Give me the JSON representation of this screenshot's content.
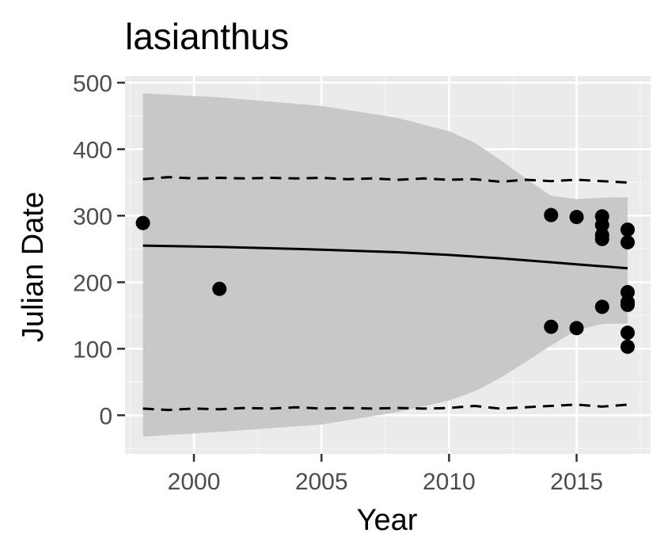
{
  "chart_data": {
    "type": "scatter",
    "title": "lasianthus",
    "xlabel": "Year",
    "ylabel": "Julian Date",
    "xlim": [
      1997.3,
      2017.9
    ],
    "ylim": [
      -58,
      510
    ],
    "x_ticks": [
      2000,
      2005,
      2010,
      2015
    ],
    "y_ticks": [
      0,
      100,
      200,
      300,
      400,
      500
    ],
    "x_tick_labels": [
      "2000",
      "2005",
      "2010",
      "2015"
    ],
    "y_tick_labels": [
      "0",
      "100",
      "200",
      "300",
      "400",
      "500"
    ],
    "grid": true,
    "legend": "none",
    "colors": {
      "panel_background": "#ebebeb",
      "grid_major": "#ffffff",
      "grid_minor": "#f5f5f5",
      "ribbon": "#c8c8c8",
      "line": "#000000",
      "points": "#000000"
    },
    "points": [
      {
        "x": 1998,
        "y": 289
      },
      {
        "x": 2001,
        "y": 190
      },
      {
        "x": 2014,
        "y": 301
      },
      {
        "x": 2014,
        "y": 133
      },
      {
        "x": 2015,
        "y": 298
      },
      {
        "x": 2015,
        "y": 131
      },
      {
        "x": 2016,
        "y": 299
      },
      {
        "x": 2016,
        "y": 286
      },
      {
        "x": 2016,
        "y": 271
      },
      {
        "x": 2016,
        "y": 265
      },
      {
        "x": 2016,
        "y": 163
      },
      {
        "x": 2017,
        "y": 279
      },
      {
        "x": 2017,
        "y": 260
      },
      {
        "x": 2017,
        "y": 185
      },
      {
        "x": 2017,
        "y": 170
      },
      {
        "x": 2017,
        "y": 166
      },
      {
        "x": 2017,
        "y": 124
      },
      {
        "x": 2017,
        "y": 103
      }
    ],
    "fit_line": {
      "x": [
        1998,
        2001,
        2005,
        2008,
        2010,
        2012,
        2014,
        2015,
        2016,
        2017
      ],
      "y": [
        255,
        253,
        249,
        245,
        241,
        236,
        230,
        227,
        224,
        221
      ]
    },
    "confidence_band": {
      "x": [
        1998,
        2001,
        2005,
        2008,
        2010,
        2011,
        2012,
        2013,
        2014,
        2015,
        2016,
        2017
      ],
      "upper": [
        484,
        478,
        465,
        447,
        427,
        410,
        384,
        356,
        330,
        325,
        327,
        328
      ],
      "lower": [
        -32,
        -25,
        -14,
        5,
        22,
        36,
        56,
        80,
        105,
        128,
        137,
        138
      ]
    },
    "prediction_upper": {
      "x": [
        1998,
        1999,
        2000,
        2001,
        2002,
        2003,
        2004,
        2005,
        2006,
        2007,
        2008,
        2009,
        2010,
        2011,
        2012,
        2013,
        2014,
        2015,
        2016,
        2017
      ],
      "y": [
        355,
        358,
        356,
        357,
        356,
        357,
        356,
        357,
        355,
        356,
        354,
        356,
        354,
        355,
        351,
        354,
        352,
        354,
        352,
        350
      ]
    },
    "prediction_lower": {
      "x": [
        1998,
        1999,
        2000,
        2001,
        2002,
        2003,
        2004,
        2005,
        2006,
        2007,
        2008,
        2009,
        2010,
        2011,
        2012,
        2013,
        2014,
        2015,
        2016,
        2017
      ],
      "y": [
        10,
        8,
        10,
        9,
        11,
        10,
        12,
        10,
        11,
        10,
        11,
        10,
        11,
        14,
        10,
        12,
        14,
        16,
        13,
        16
      ]
    }
  }
}
